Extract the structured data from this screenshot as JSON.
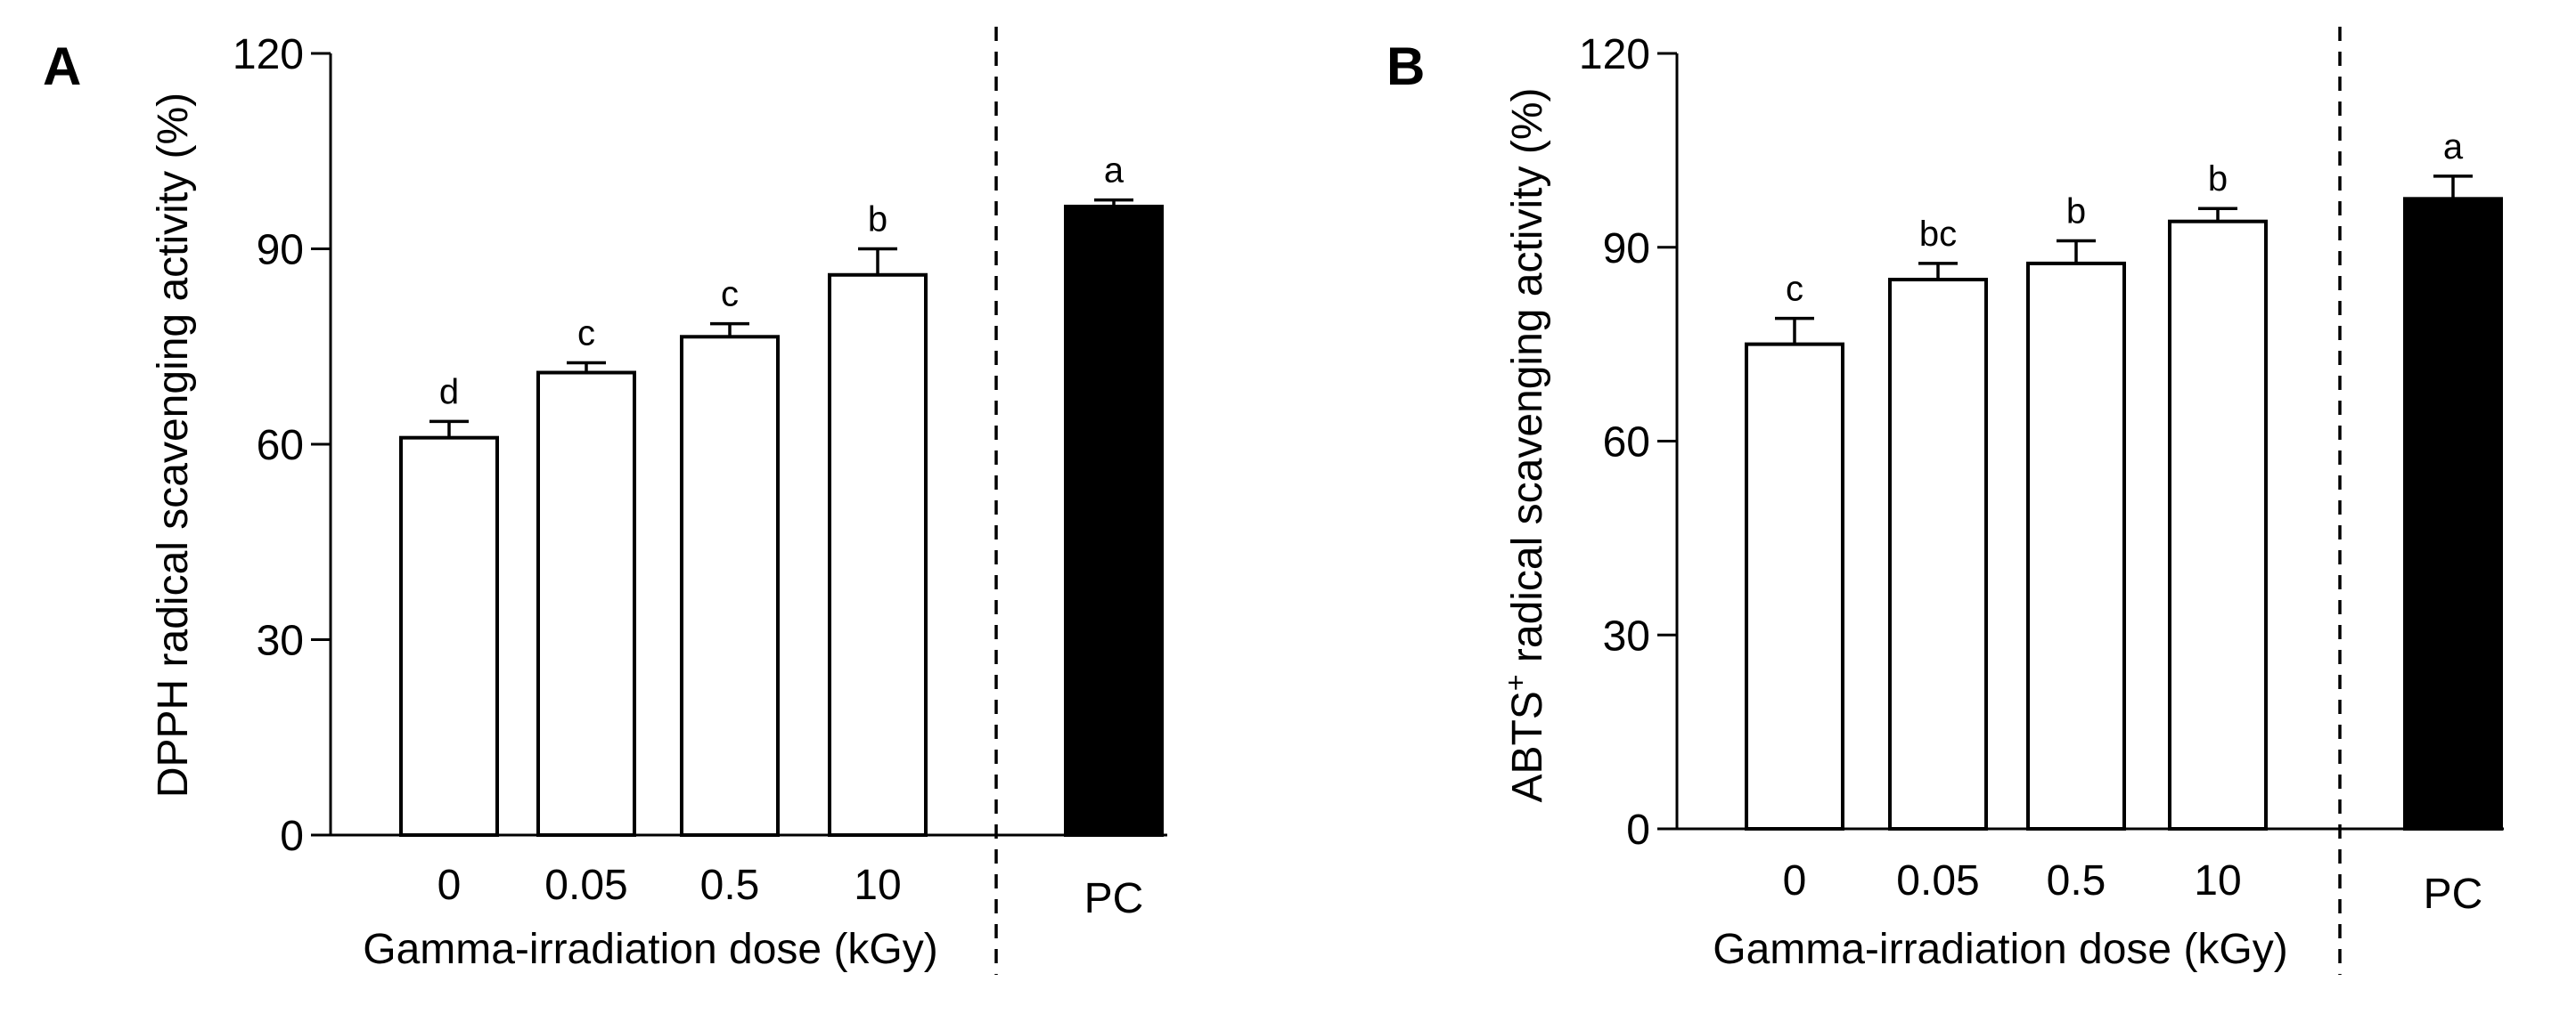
{
  "chart_data": [
    {
      "type": "bar",
      "panel": "A",
      "ylabel": "DPPH radical scavenging activity (%)",
      "ylabel_sup": "",
      "ylabel_rest": "",
      "xlabel": "Gamma-irradiation dose (kGy)",
      "ylim": [
        0,
        120
      ],
      "yticks": [
        "0",
        "30",
        "60",
        "90",
        "120"
      ],
      "categories": [
        "0",
        "0.05",
        "0.5",
        "10",
        "PC"
      ],
      "values": [
        61.0,
        71.0,
        76.5,
        86.0,
        96.5
      ],
      "errors": [
        2.5,
        1.5,
        2.0,
        4.0,
        1.0
      ],
      "letters": [
        "d",
        "c",
        "c",
        "b",
        "a"
      ],
      "fills": [
        "#ffffff",
        "#ffffff",
        "#ffffff",
        "#ffffff",
        "#000000"
      ],
      "separator_before_category": "PC",
      "grid": false
    },
    {
      "type": "bar",
      "panel": "B",
      "ylabel": "ABTS",
      "ylabel_sup": "+",
      "ylabel_rest": " radical scavenging activity (%)",
      "xlabel": "Gamma-irradiation dose (kGy)",
      "ylim": [
        0,
        120
      ],
      "yticks": [
        "0",
        "30",
        "60",
        "90",
        "120"
      ],
      "categories": [
        "0",
        "0.05",
        "0.5",
        "10",
        "PC"
      ],
      "values": [
        75.0,
        85.0,
        87.5,
        94.0,
        97.5
      ],
      "errors": [
        4.0,
        2.5,
        3.5,
        2.0,
        3.5
      ],
      "letters": [
        "c",
        "bc",
        "b",
        "b",
        "a"
      ],
      "fills": [
        "#ffffff",
        "#ffffff",
        "#ffffff",
        "#ffffff",
        "#000000"
      ],
      "separator_before_category": "PC",
      "grid": false
    }
  ]
}
